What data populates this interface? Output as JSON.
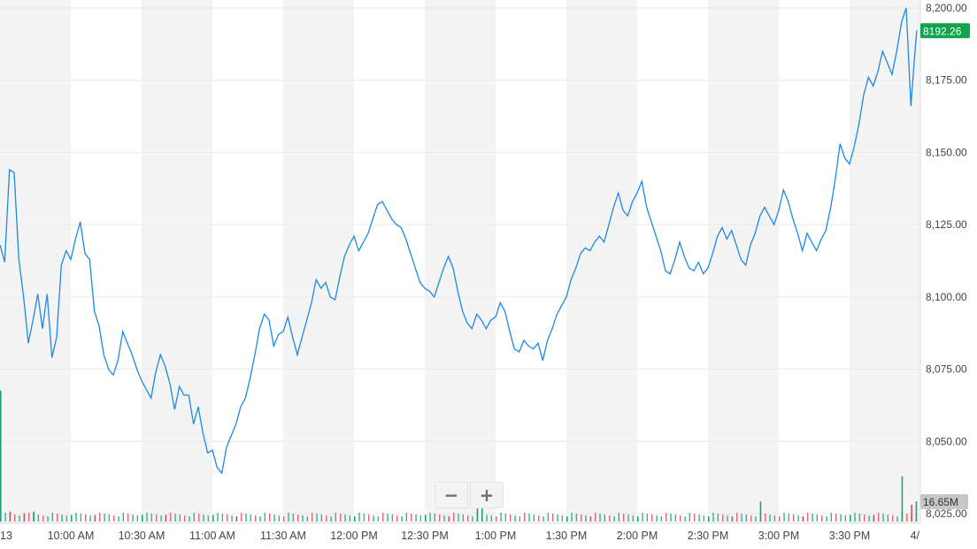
{
  "colors": {
    "line": "#1e88e5",
    "band": "#f4f4f4",
    "up_volume": "#1aa37a",
    "down_volume": "#e84a5a",
    "price_tag": "#11a34e",
    "volume_tag": "#c7c7c7",
    "axis_text": "#444444"
  },
  "controls": {
    "zoom_out": "−",
    "zoom_in": "+"
  },
  "chart_data": {
    "type": "line",
    "title": "",
    "xlabel": "",
    "ylabel": "",
    "x_tick_labels": [
      "13",
      "10:00 AM",
      "10:30 AM",
      "11:00 AM",
      "11:30 AM",
      "12:00 PM",
      "12:30 PM",
      "1:00 PM",
      "1:30 PM",
      "2:00 PM",
      "2:30 PM",
      "3:00 PM",
      "3:30 PM",
      "4/"
    ],
    "x_tick_times": [
      "09:30",
      "10:00",
      "10:30",
      "11:00",
      "11:30",
      "12:00",
      "12:30",
      "13:00",
      "13:30",
      "14:00",
      "14:30",
      "15:00",
      "15:30",
      "16:00"
    ],
    "y_tick_labels": [
      "8,025.00",
      "8,050.00",
      "8,075.00",
      "8,100.00",
      "8,125.00",
      "8,150.00",
      "8,175.00",
      "8,200.00"
    ],
    "ylim": [
      8025,
      8200
    ],
    "last_price_label": "8192.26",
    "last_price": 8192.26,
    "volume_label": "16.65M",
    "grid": true,
    "series": [
      {
        "values": [
          [
            "09:30",
            8118
          ],
          [
            "09:32",
            8112
          ],
          [
            "09:34",
            8144
          ],
          [
            "09:36",
            8143
          ],
          [
            "09:38",
            8113
          ],
          [
            "09:40",
            8100
          ],
          [
            "09:42",
            8084
          ],
          [
            "09:44",
            8092
          ],
          [
            "09:46",
            8101
          ],
          [
            "09:48",
            8089
          ],
          [
            "09:50",
            8101
          ],
          [
            "09:52",
            8079
          ],
          [
            "09:54",
            8086
          ],
          [
            "09:56",
            8111
          ],
          [
            "09:58",
            8116
          ],
          [
            "10:00",
            8113
          ],
          [
            "10:02",
            8120
          ],
          [
            "10:04",
            8126
          ],
          [
            "10:06",
            8115
          ],
          [
            "10:08",
            8113
          ],
          [
            "10:10",
            8095
          ],
          [
            "10:12",
            8090
          ],
          [
            "10:14",
            8080
          ],
          [
            "10:16",
            8075
          ],
          [
            "10:18",
            8073
          ],
          [
            "10:20",
            8078
          ],
          [
            "10:22",
            8088
          ],
          [
            "10:24",
            8084
          ],
          [
            "10:26",
            8080
          ],
          [
            "10:28",
            8075
          ],
          [
            "10:30",
            8071
          ],
          [
            "10:32",
            8068
          ],
          [
            "10:34",
            8065
          ],
          [
            "10:36",
            8074
          ],
          [
            "10:38",
            8080
          ],
          [
            "10:40",
            8076
          ],
          [
            "10:42",
            8070
          ],
          [
            "10:44",
            8061
          ],
          [
            "10:46",
            8069
          ],
          [
            "10:48",
            8066
          ],
          [
            "10:50",
            8066
          ],
          [
            "10:52",
            8056
          ],
          [
            "10:54",
            8062
          ],
          [
            "10:56",
            8053
          ],
          [
            "10:58",
            8046
          ],
          [
            "11:00",
            8047
          ],
          [
            "11:02",
            8041
          ],
          [
            "11:04",
            8039
          ],
          [
            "11:06",
            8048
          ],
          [
            "11:08",
            8052
          ],
          [
            "11:10",
            8056
          ],
          [
            "11:12",
            8062
          ],
          [
            "11:14",
            8065
          ],
          [
            "11:16",
            8072
          ],
          [
            "11:18",
            8080
          ],
          [
            "11:20",
            8089
          ],
          [
            "11:22",
            8094
          ],
          [
            "11:24",
            8092
          ],
          [
            "11:26",
            8083
          ],
          [
            "11:28",
            8087
          ],
          [
            "11:30",
            8088
          ],
          [
            "11:32",
            8093
          ],
          [
            "11:34",
            8086
          ],
          [
            "11:36",
            8080
          ],
          [
            "11:38",
            8086
          ],
          [
            "11:40",
            8092
          ],
          [
            "11:42",
            8098
          ],
          [
            "11:44",
            8106
          ],
          [
            "11:46",
            8103
          ],
          [
            "11:48",
            8105
          ],
          [
            "11:50",
            8100
          ],
          [
            "11:52",
            8099
          ],
          [
            "11:54",
            8107
          ],
          [
            "11:56",
            8114
          ],
          [
            "11:58",
            8118
          ],
          [
            "12:00",
            8121
          ],
          [
            "12:02",
            8116
          ],
          [
            "12:04",
            8119
          ],
          [
            "12:06",
            8122
          ],
          [
            "12:08",
            8127
          ],
          [
            "12:10",
            8132
          ],
          [
            "12:12",
            8133
          ],
          [
            "12:14",
            8130
          ],
          [
            "12:16",
            8127
          ],
          [
            "12:18",
            8125
          ],
          [
            "12:20",
            8124
          ],
          [
            "12:22",
            8120
          ],
          [
            "12:24",
            8115
          ],
          [
            "12:26",
            8110
          ],
          [
            "12:28",
            8105
          ],
          [
            "12:30",
            8103
          ],
          [
            "12:32",
            8102
          ],
          [
            "12:34",
            8100
          ],
          [
            "12:36",
            8105
          ],
          [
            "12:38",
            8110
          ],
          [
            "12:40",
            8114
          ],
          [
            "12:42",
            8110
          ],
          [
            "12:44",
            8102
          ],
          [
            "12:46",
            8095
          ],
          [
            "12:48",
            8091
          ],
          [
            "12:50",
            8089
          ],
          [
            "12:52",
            8094
          ],
          [
            "12:54",
            8092
          ],
          [
            "12:56",
            8089
          ],
          [
            "12:58",
            8092
          ],
          [
            "13:00",
            8093
          ],
          [
            "13:02",
            8098
          ],
          [
            "13:04",
            8095
          ],
          [
            "13:06",
            8088
          ],
          [
            "13:08",
            8082
          ],
          [
            "13:10",
            8081
          ],
          [
            "13:12",
            8085
          ],
          [
            "13:14",
            8083
          ],
          [
            "13:16",
            8082
          ],
          [
            "13:18",
            8084
          ],
          [
            "13:20",
            8078
          ],
          [
            "13:22",
            8085
          ],
          [
            "13:24",
            8089
          ],
          [
            "13:26",
            8094
          ],
          [
            "13:28",
            8097
          ],
          [
            "13:30",
            8100
          ],
          [
            "13:32",
            8106
          ],
          [
            "13:34",
            8110
          ],
          [
            "13:36",
            8115
          ],
          [
            "13:38",
            8117
          ],
          [
            "13:40",
            8116
          ],
          [
            "13:42",
            8119
          ],
          [
            "13:44",
            8121
          ],
          [
            "13:46",
            8119
          ],
          [
            "13:48",
            8125
          ],
          [
            "13:50",
            8131
          ],
          [
            "13:52",
            8136
          ],
          [
            "13:54",
            8130
          ],
          [
            "13:56",
            8128
          ],
          [
            "13:58",
            8133
          ],
          [
            "14:00",
            8136
          ],
          [
            "14:02",
            8140
          ],
          [
            "14:04",
            8131
          ],
          [
            "14:06",
            8126
          ],
          [
            "14:08",
            8121
          ],
          [
            "14:10",
            8116
          ],
          [
            "14:12",
            8109
          ],
          [
            "14:14",
            8108
          ],
          [
            "14:16",
            8113
          ],
          [
            "14:18",
            8119
          ],
          [
            "14:20",
            8114
          ],
          [
            "14:22",
            8110
          ],
          [
            "14:24",
            8109
          ],
          [
            "14:26",
            8112
          ],
          [
            "14:28",
            8108
          ],
          [
            "14:30",
            8110
          ],
          [
            "14:32",
            8115
          ],
          [
            "14:34",
            8121
          ],
          [
            "14:36",
            8124
          ],
          [
            "14:38",
            8120
          ],
          [
            "14:40",
            8123
          ],
          [
            "14:42",
            8118
          ],
          [
            "14:44",
            8113
          ],
          [
            "14:46",
            8111
          ],
          [
            "14:48",
            8118
          ],
          [
            "14:50",
            8122
          ],
          [
            "14:52",
            8128
          ],
          [
            "14:54",
            8131
          ],
          [
            "14:56",
            8128
          ],
          [
            "14:58",
            8125
          ],
          [
            "15:00",
            8130
          ],
          [
            "15:02",
            8137
          ],
          [
            "15:04",
            8133
          ],
          [
            "15:06",
            8127
          ],
          [
            "15:08",
            8122
          ],
          [
            "15:10",
            8116
          ],
          [
            "15:12",
            8122
          ],
          [
            "15:14",
            8119
          ],
          [
            "15:16",
            8116
          ],
          [
            "15:18",
            8120
          ],
          [
            "15:20",
            8123
          ],
          [
            "15:22",
            8131
          ],
          [
            "15:24",
            8141
          ],
          [
            "15:26",
            8153
          ],
          [
            "15:28",
            8148
          ],
          [
            "15:30",
            8146
          ],
          [
            "15:32",
            8152
          ],
          [
            "15:34",
            8160
          ],
          [
            "15:36",
            8170
          ],
          [
            "15:38",
            8176
          ],
          [
            "15:40",
            8173
          ],
          [
            "15:42",
            8178
          ],
          [
            "15:44",
            8185
          ],
          [
            "15:46",
            8181
          ],
          [
            "15:48",
            8177
          ],
          [
            "15:50",
            8185
          ],
          [
            "15:52",
            8195
          ],
          [
            "15:54",
            8200
          ],
          [
            "15:56",
            8166
          ],
          [
            "15:58",
            8188
          ],
          [
            "16:00",
            8192.26
          ]
        ]
      }
    ],
    "volume_bars": {
      "up": [
        [
          "09:30",
          0.78
        ],
        [
          "09:44",
          0.06
        ],
        [
          "10:00",
          0.04
        ],
        [
          "10:30",
          0.04
        ],
        [
          "11:00",
          0.04
        ],
        [
          "12:00",
          0.03
        ],
        [
          "12:30",
          0.04
        ],
        [
          "12:52",
          0.12
        ],
        [
          "12:54",
          0.08
        ],
        [
          "13:30",
          0.03
        ],
        [
          "14:00",
          0.03
        ],
        [
          "14:30",
          0.03
        ],
        [
          "14:52",
          0.12
        ],
        [
          "15:30",
          0.04
        ],
        [
          "15:52",
          0.27
        ],
        [
          "15:58",
          0.12
        ]
      ],
      "down": [
        [
          "09:34",
          0.06
        ],
        [
          "09:40",
          0.05
        ],
        [
          "10:10",
          0.04
        ],
        [
          "10:40",
          0.04
        ],
        [
          "11:10",
          0.03
        ],
        [
          "12:40",
          0.03
        ],
        [
          "13:40",
          0.03
        ],
        [
          "14:40",
          0.03
        ],
        [
          "15:10",
          0.03
        ],
        [
          "15:40",
          0.04
        ],
        [
          "15:56",
          0.1
        ]
      ]
    }
  }
}
